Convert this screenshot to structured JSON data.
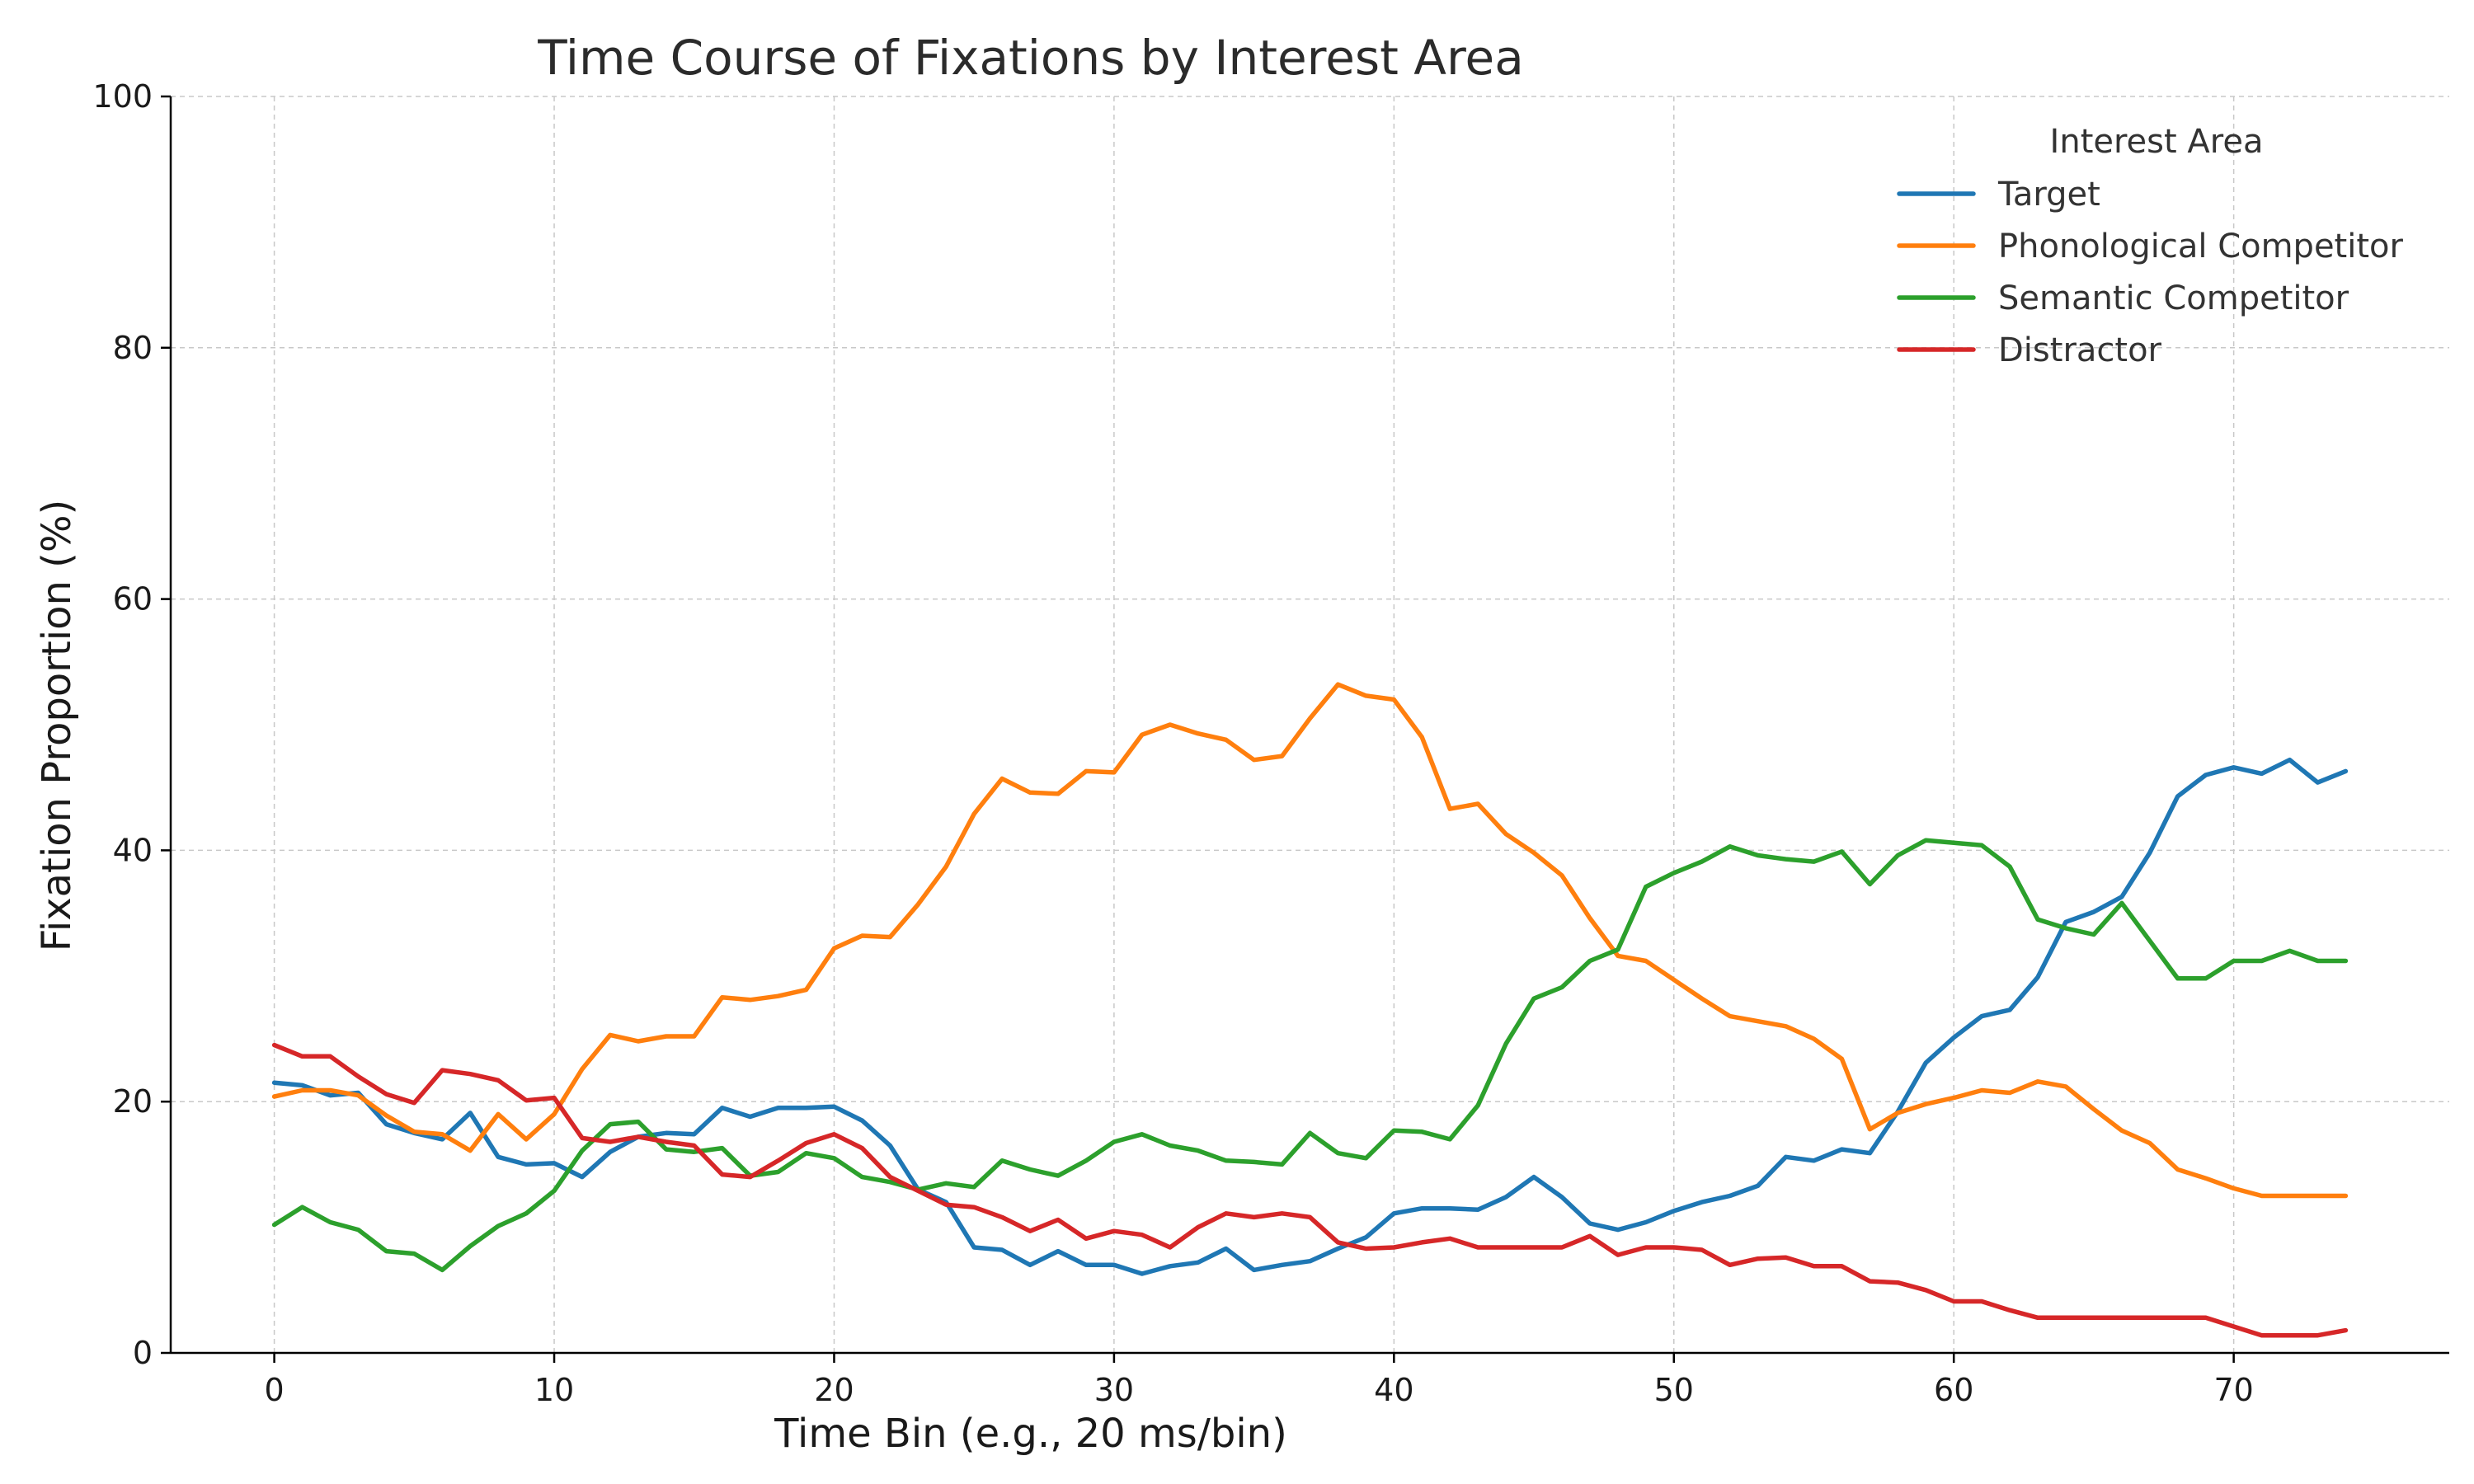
{
  "chart_data": {
    "type": "line",
    "title": "Time Course of Fixations by Interest Area",
    "xlabel": "Time Bin (e.g., 20 ms/bin)",
    "ylabel": "Fixation Proportion (%)",
    "xlim": [
      -3.7,
      77.7
    ],
    "ylim": [
      0,
      100
    ],
    "xticks": [
      0,
      10,
      20,
      30,
      40,
      50,
      60,
      70
    ],
    "yticks": [
      0,
      20,
      40,
      60,
      80,
      100
    ],
    "grid": true,
    "legend": {
      "title": "Interest Area",
      "position": "top-right"
    },
    "x": [
      0,
      1,
      2,
      3,
      4,
      5,
      6,
      7,
      8,
      9,
      10,
      11,
      12,
      13,
      14,
      15,
      16,
      17,
      18,
      19,
      20,
      21,
      22,
      23,
      24,
      25,
      26,
      27,
      28,
      29,
      30,
      31,
      32,
      33,
      34,
      35,
      36,
      37,
      38,
      39,
      40,
      41,
      42,
      43,
      44,
      45,
      46,
      47,
      48,
      49,
      50,
      51,
      52,
      53,
      54,
      55,
      56,
      57,
      58,
      59,
      60,
      61,
      62,
      63,
      64,
      65,
      66,
      67,
      68,
      69,
      70,
      71,
      72,
      73,
      74
    ],
    "series": [
      {
        "name": "Target",
        "color": "#1f77b4",
        "values": [
          21.5,
          21.3,
          20.5,
          20.7,
          18.2,
          17.5,
          17.0,
          19.1,
          15.6,
          15.0,
          15.1,
          14.0,
          16.0,
          17.2,
          17.5,
          17.4,
          19.5,
          18.8,
          19.5,
          19.5,
          19.6,
          18.5,
          16.5,
          13.0,
          12.0,
          8.4,
          8.2,
          7.0,
          8.1,
          7.0,
          7.0,
          6.3,
          6.9,
          7.2,
          8.3,
          6.6,
          7.0,
          7.3,
          8.3,
          9.2,
          11.1,
          11.5,
          11.5,
          11.4,
          12.4,
          14.0,
          12.4,
          10.3,
          9.8,
          10.4,
          11.3,
          12.0,
          12.5,
          13.3,
          15.6,
          15.3,
          16.2,
          15.9,
          19.2,
          23.1,
          25.1,
          26.8,
          27.3,
          29.9,
          34.3,
          35.1,
          36.3,
          39.8,
          44.3,
          46.0,
          46.6,
          46.1,
          47.2,
          45.4,
          46.3
        ]
      },
      {
        "name": "Phonological Competitor",
        "color": "#ff7f0e",
        "values": [
          20.4,
          20.9,
          20.9,
          20.5,
          18.9,
          17.6,
          17.4,
          16.1,
          19.0,
          17.0,
          19.0,
          22.6,
          25.3,
          24.8,
          25.2,
          25.2,
          28.3,
          28.1,
          28.4,
          28.9,
          32.2,
          33.2,
          33.1,
          35.7,
          38.7,
          42.9,
          45.7,
          44.6,
          44.5,
          46.3,
          46.2,
          49.2,
          50.0,
          49.3,
          48.8,
          47.2,
          47.5,
          50.5,
          53.2,
          52.3,
          52.0,
          49.0,
          43.3,
          43.7,
          41.3,
          39.8,
          38.0,
          34.6,
          31.6,
          31.2,
          29.7,
          28.2,
          26.8,
          26.4,
          26.0,
          25.0,
          23.4,
          17.8,
          19.1,
          19.8,
          20.3,
          20.9,
          20.7,
          21.6,
          21.2,
          19.4,
          17.7,
          16.7,
          14.6,
          13.9,
          13.1,
          12.5,
          12.5,
          12.5,
          12.5
        ]
      },
      {
        "name": "Semantic Competitor",
        "color": "#2ca02c",
        "values": [
          10.2,
          11.6,
          10.4,
          9.8,
          8.1,
          7.9,
          6.6,
          8.5,
          10.1,
          11.1,
          12.9,
          16.1,
          18.2,
          18.4,
          16.2,
          16.0,
          16.3,
          14.1,
          14.4,
          15.9,
          15.5,
          14.0,
          13.6,
          13.0,
          13.5,
          13.2,
          15.3,
          14.6,
          14.1,
          15.3,
          16.8,
          17.4,
          16.5,
          16.1,
          15.3,
          15.2,
          15.0,
          17.5,
          15.9,
          15.5,
          17.7,
          17.6,
          17.0,
          19.7,
          24.6,
          28.2,
          29.1,
          31.2,
          32.1,
          37.1,
          38.2,
          39.1,
          40.3,
          39.6,
          39.3,
          39.1,
          39.9,
          37.3,
          39.6,
          40.8,
          40.6,
          40.4,
          38.7,
          34.5,
          33.8,
          33.3,
          35.8,
          32.8,
          29.8,
          29.8,
          31.2,
          31.2,
          32.0,
          31.2,
          31.2
        ]
      },
      {
        "name": "Distractor",
        "color": "#d62728",
        "values": [
          24.5,
          23.6,
          23.6,
          22.0,
          20.6,
          19.9,
          22.5,
          22.2,
          21.7,
          20.1,
          20.3,
          17.1,
          16.8,
          17.2,
          16.8,
          16.5,
          14.2,
          14.0,
          15.3,
          16.7,
          17.4,
          16.3,
          14.0,
          12.9,
          11.8,
          11.6,
          10.8,
          9.7,
          10.6,
          9.1,
          9.7,
          9.4,
          8.4,
          10.0,
          11.1,
          10.8,
          11.1,
          10.8,
          8.8,
          8.3,
          8.4,
          8.8,
          9.1,
          8.4,
          8.4,
          8.4,
          8.4,
          9.3,
          7.8,
          8.4,
          8.4,
          8.2,
          7.0,
          7.5,
          7.6,
          6.9,
          6.9,
          5.7,
          5.6,
          5.0,
          4.1,
          4.1,
          3.4,
          2.8,
          2.8,
          2.8,
          2.8,
          2.8,
          2.8,
          2.8,
          2.1,
          1.4,
          1.4,
          1.4,
          1.8
        ]
      }
    ]
  }
}
